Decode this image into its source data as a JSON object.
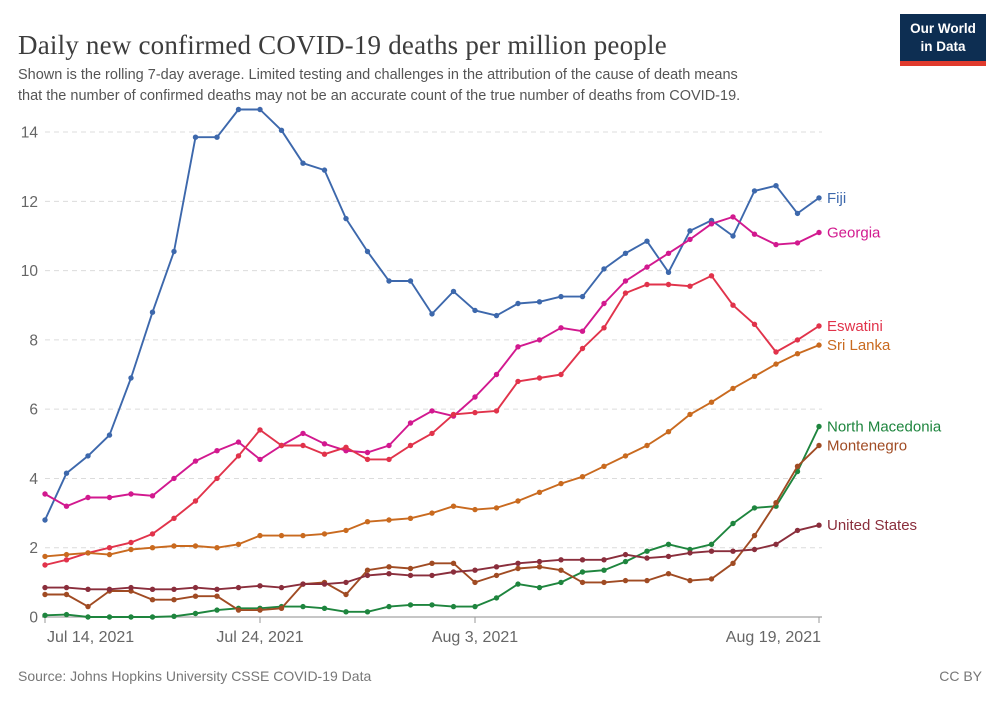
{
  "header": {
    "title": "Daily new confirmed COVID-19 deaths per million people",
    "subtitle": "Shown is the rolling 7-day average. Limited testing and challenges in the attribution of the cause of death means\nthat the number of confirmed deaths may not be an accurate count of the true number of deaths from COVID-19.",
    "logo": {
      "line1": "Our World",
      "line2": "in Data",
      "bg_color": "#0d2e52",
      "bar_color": "#e03a2c"
    }
  },
  "footer": {
    "source": "Source: Johns Hopkins University CSSE COVID-19 Data",
    "license": "CC BY"
  },
  "chart_data": {
    "type": "line",
    "title": "Daily new confirmed COVID-19 deaths per million people",
    "xlabel": "",
    "ylabel": "",
    "ylim": [
      0,
      14
    ],
    "y_ticks": [
      0,
      2,
      4,
      6,
      8,
      10,
      12,
      14
    ],
    "grid": true,
    "grid_style": "dashed",
    "legend_position": "right-of-line-ends",
    "x": [
      "Jul 14",
      "Jul 15",
      "Jul 16",
      "Jul 17",
      "Jul 18",
      "Jul 19",
      "Jul 20",
      "Jul 21",
      "Jul 22",
      "Jul 23",
      "Jul 24",
      "Jul 25",
      "Jul 26",
      "Jul 27",
      "Jul 28",
      "Jul 29",
      "Jul 30",
      "Jul 31",
      "Aug 1",
      "Aug 2",
      "Aug 3",
      "Aug 4",
      "Aug 5",
      "Aug 6",
      "Aug 7",
      "Aug 8",
      "Aug 9",
      "Aug 10",
      "Aug 11",
      "Aug 12",
      "Aug 13",
      "Aug 14",
      "Aug 15",
      "Aug 16",
      "Aug 17",
      "Aug 18",
      "Aug 19"
    ],
    "x_ticks": [
      {
        "index": 0,
        "label": "Jul 14, 2021",
        "align": "start"
      },
      {
        "index": 10,
        "label": "Jul 24, 2021",
        "align": "middle"
      },
      {
        "index": 20,
        "label": "Aug 3, 2021",
        "align": "middle"
      },
      {
        "index": 36,
        "label": "Aug 19, 2021",
        "align": "end"
      }
    ],
    "series": [
      {
        "name": "Fiji",
        "color": "#3d68ac",
        "values": [
          2.8,
          4.15,
          4.65,
          5.25,
          6.9,
          8.8,
          10.55,
          13.85,
          13.85,
          14.65,
          14.65,
          14.05,
          13.1,
          12.9,
          11.5,
          10.55,
          9.7,
          9.7,
          8.75,
          9.4,
          8.85,
          8.7,
          9.05,
          9.1,
          9.25,
          9.25,
          10.05,
          10.5,
          10.85,
          9.95,
          11.15,
          11.45,
          11.0,
          12.3,
          12.45,
          11.65,
          12.1
        ]
      },
      {
        "name": "Georgia",
        "color": "#d2198f",
        "values": [
          3.55,
          3.2,
          3.45,
          3.45,
          3.55,
          3.5,
          4.0,
          4.5,
          4.8,
          5.05,
          4.55,
          4.95,
          5.3,
          5.0,
          4.8,
          4.75,
          4.95,
          5.6,
          5.95,
          5.8,
          6.35,
          7.0,
          7.8,
          8.0,
          8.35,
          8.25,
          9.05,
          9.7,
          10.1,
          10.5,
          10.9,
          11.35,
          11.55,
          11.05,
          10.75,
          10.8,
          11.1
        ]
      },
      {
        "name": "Eswatini",
        "color": "#e1334b",
        "values": [
          1.5,
          1.65,
          1.85,
          2.0,
          2.15,
          2.4,
          2.85,
          3.35,
          4.0,
          4.65,
          5.4,
          4.95,
          4.95,
          4.7,
          4.9,
          4.55,
          4.55,
          4.95,
          5.3,
          5.85,
          5.9,
          5.95,
          6.8,
          6.9,
          7.0,
          7.75,
          8.35,
          9.35,
          9.6,
          9.6,
          9.55,
          9.85,
          9.0,
          8.45,
          7.65,
          8.0,
          8.4
        ]
      },
      {
        "name": "Sri Lanka",
        "color": "#c96a1f",
        "values": [
          1.75,
          1.8,
          1.85,
          1.8,
          1.95,
          2.0,
          2.05,
          2.05,
          2.0,
          2.1,
          2.35,
          2.35,
          2.35,
          2.4,
          2.5,
          2.75,
          2.8,
          2.85,
          3.0,
          3.2,
          3.1,
          3.15,
          3.35,
          3.6,
          3.85,
          4.05,
          4.35,
          4.65,
          4.95,
          5.35,
          5.85,
          6.2,
          6.6,
          6.95,
          7.3,
          7.6,
          7.85
        ]
      },
      {
        "name": "North Macedonia",
        "color": "#1e853e",
        "values": [
          0.05,
          0.07,
          0.0,
          0.0,
          0.0,
          0.0,
          0.02,
          0.1,
          0.2,
          0.25,
          0.25,
          0.3,
          0.3,
          0.25,
          0.15,
          0.15,
          0.3,
          0.35,
          0.35,
          0.3,
          0.3,
          0.55,
          0.95,
          0.85,
          1.0,
          1.3,
          1.35,
          1.6,
          1.9,
          2.1,
          1.95,
          2.1,
          2.7,
          3.15,
          3.2,
          4.2,
          5.5
        ]
      },
      {
        "name": "Montenegro",
        "color": "#a04b23",
        "values": [
          0.65,
          0.65,
          0.3,
          0.75,
          0.75,
          0.5,
          0.5,
          0.6,
          0.6,
          0.2,
          0.2,
          0.25,
          0.95,
          1.0,
          0.65,
          1.35,
          1.45,
          1.4,
          1.55,
          1.55,
          1.0,
          1.2,
          1.4,
          1.45,
          1.35,
          1.0,
          1.0,
          1.05,
          1.05,
          1.25,
          1.05,
          1.1,
          1.55,
          2.35,
          3.3,
          4.35,
          4.95
        ]
      },
      {
        "name": "United States",
        "color": "#8a2e3c",
        "values": [
          0.85,
          0.85,
          0.8,
          0.8,
          0.85,
          0.8,
          0.8,
          0.85,
          0.8,
          0.85,
          0.9,
          0.85,
          0.95,
          0.95,
          1.0,
          1.2,
          1.25,
          1.2,
          1.2,
          1.3,
          1.35,
          1.45,
          1.55,
          1.6,
          1.65,
          1.65,
          1.65,
          1.8,
          1.7,
          1.75,
          1.85,
          1.9,
          1.9,
          1.95,
          2.1,
          2.5,
          2.65
        ]
      }
    ],
    "axis_colors": {
      "grid": "#dcdcdc",
      "axis_line": "#a5a5a5",
      "tick_text": "#666666"
    }
  }
}
